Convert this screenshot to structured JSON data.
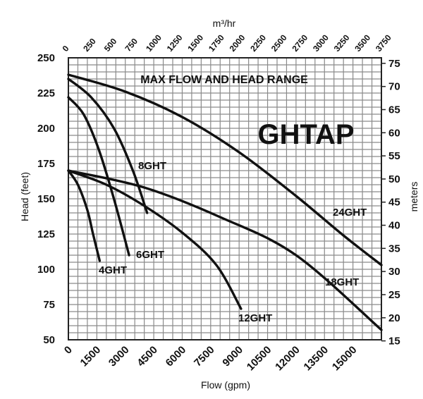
{
  "chart_data": {
    "type": "line",
    "annotation": "MAX FLOW AND HEAD RANGE",
    "brand": "GHTAP",
    "xlabel": "Flow (gpm)",
    "ylabel": "Head (feet)",
    "xlabel_top": "m³/hr",
    "ylabel_right": "meters",
    "xlim": [
      0,
      16500
    ],
    "ylim": [
      50,
      250
    ],
    "x_ticks": [
      0,
      1500,
      3000,
      4500,
      6000,
      7500,
      9000,
      10500,
      12000,
      13500,
      15000
    ],
    "y_ticks": [
      50,
      75,
      100,
      125,
      150,
      175,
      200,
      225,
      250
    ],
    "top_ticks": [
      0,
      250,
      500,
      750,
      1000,
      1250,
      1500,
      1750,
      2000,
      2250,
      2500,
      2750,
      3000,
      3250,
      3500,
      3750
    ],
    "right_ticks": [
      15,
      20,
      25,
      30,
      35,
      40,
      45,
      50,
      55,
      60,
      65,
      70,
      75
    ],
    "grid": true,
    "series": [
      {
        "name": "4GHT",
        "x": [
          0,
          500,
          1000,
          1300,
          1650
        ],
        "y": [
          170,
          160,
          142,
          125,
          106
        ]
      },
      {
        "name": "6GHT",
        "x": [
          0,
          800,
          1600,
          2400,
          3200
        ],
        "y": [
          222,
          210,
          185,
          150,
          110
        ]
      },
      {
        "name": "8GHT",
        "x": [
          0,
          1200,
          2400,
          3400,
          4150
        ],
        "y": [
          235,
          222,
          200,
          170,
          140
        ]
      },
      {
        "name": "12GHT",
        "x": [
          0,
          2000,
          4000,
          6000,
          7800,
          9100
        ],
        "y": [
          170,
          160,
          145,
          126,
          103,
          72
        ]
      },
      {
        "name": "18GHT",
        "x": [
          0,
          4000,
          8000,
          12000,
          16500
        ],
        "y": [
          170,
          158,
          137,
          110,
          57
        ]
      },
      {
        "name": "24GHT",
        "x": [
          0,
          3000,
          6000,
          9000,
          12000,
          14500,
          16500
        ],
        "y": [
          238,
          226,
          208,
          183,
          152,
          124,
          103
        ]
      }
    ]
  }
}
